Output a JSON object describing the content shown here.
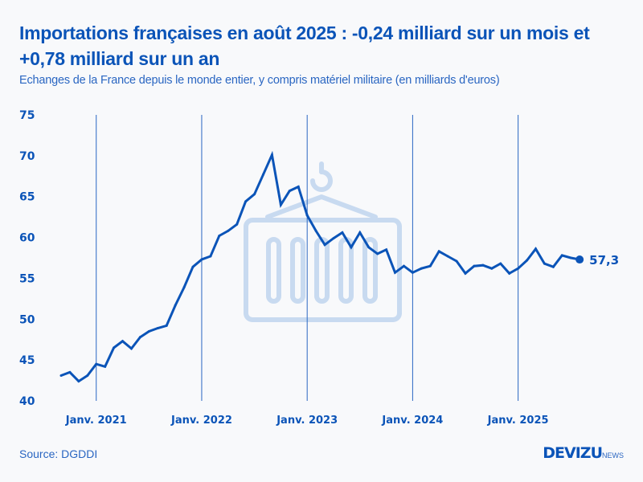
{
  "header": {
    "title": "Importations françaises en août 2025 : -0,24 milliard sur un mois et +0,78 milliard sur un an",
    "subtitle": "Echanges de la France depuis le monde entier, y compris matériel militaire (en milliards d'euros)"
  },
  "footer": {
    "source": "Source: DGDDI",
    "logo_brand": "DEVIZU",
    "logo_suffix": "NEWS"
  },
  "colors": {
    "primary": "#0b54b8",
    "gridline": "#2a66c2",
    "watermark": "#c8daf0",
    "background": "#f8f9fb"
  },
  "watermark_icon": "shipping-container-icon",
  "chart_data": {
    "type": "line",
    "title": "Importations françaises en août 2025 : -0,24 milliard sur un mois et +0,78 milliard sur un an",
    "subtitle": "Echanges de la France depuis le monde entier, y compris matériel militaire (en milliards d'euros)",
    "xlabel": "",
    "ylabel": "",
    "ylim": [
      40,
      75
    ],
    "yticks": [
      40,
      45,
      50,
      55,
      60,
      65,
      70,
      75
    ],
    "xticks": [
      {
        "label": "Janv. 2021",
        "x": "2021-01"
      },
      {
        "label": "Janv. 2022",
        "x": "2022-01"
      },
      {
        "label": "Janv. 2023",
        "x": "2023-01"
      },
      {
        "label": "Janv. 2024",
        "x": "2024-01"
      },
      {
        "label": "Janv. 2025",
        "x": "2025-01"
      }
    ],
    "grid": "vertical at January ticks",
    "legend": "none",
    "end_label": "57,3",
    "x": [
      "2020-09",
      "2020-10",
      "2020-11",
      "2020-12",
      "2021-01",
      "2021-02",
      "2021-03",
      "2021-04",
      "2021-05",
      "2021-06",
      "2021-07",
      "2021-08",
      "2021-09",
      "2021-10",
      "2021-11",
      "2021-12",
      "2022-01",
      "2022-02",
      "2022-03",
      "2022-04",
      "2022-05",
      "2022-06",
      "2022-07",
      "2022-08",
      "2022-09",
      "2022-10",
      "2022-11",
      "2022-12",
      "2023-01",
      "2023-02",
      "2023-03",
      "2023-04",
      "2023-05",
      "2023-06",
      "2023-07",
      "2023-08",
      "2023-09",
      "2023-10",
      "2023-11",
      "2023-12",
      "2024-01",
      "2024-02",
      "2024-03",
      "2024-04",
      "2024-05",
      "2024-06",
      "2024-07",
      "2024-08",
      "2024-09",
      "2024-10",
      "2024-11",
      "2024-12",
      "2025-01",
      "2025-02",
      "2025-03",
      "2025-04",
      "2025-05",
      "2025-06",
      "2025-07",
      "2025-08"
    ],
    "series": [
      {
        "name": "Importations",
        "values": [
          43.1,
          43.5,
          42.4,
          43.1,
          44.5,
          44.2,
          46.5,
          47.3,
          46.4,
          47.8,
          48.5,
          48.9,
          49.2,
          51.7,
          53.9,
          56.4,
          57.3,
          57.7,
          60.2,
          60.8,
          61.6,
          64.4,
          65.3,
          67.7,
          70.1,
          64.0,
          65.7,
          66.2,
          62.7,
          60.8,
          59.1,
          59.9,
          60.6,
          58.8,
          60.6,
          58.8,
          58.0,
          58.5,
          55.7,
          56.5,
          55.7,
          56.2,
          56.5,
          58.3,
          57.7,
          57.1,
          55.6,
          56.5,
          56.6,
          56.2,
          56.8,
          55.6,
          56.2,
          57.2,
          58.6,
          56.8,
          56.4,
          57.8,
          57.5,
          57.3
        ]
      }
    ]
  }
}
